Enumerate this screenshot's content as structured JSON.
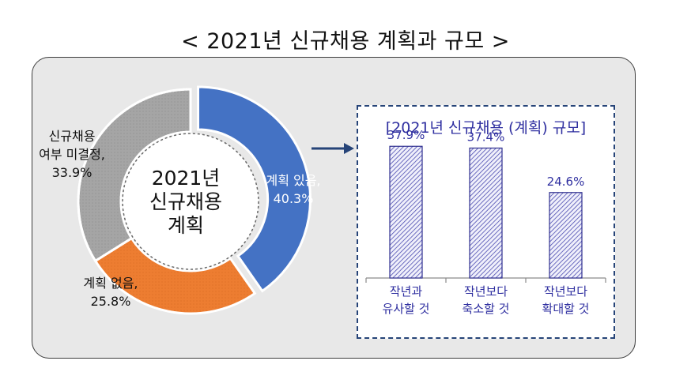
{
  "title": "< 2021년 신규채용 계획과 규모 >",
  "colors": {
    "planned": "#4472c4",
    "none": "#ed7d31",
    "undecided": "#a5a5a5",
    "bar_stroke": "#2f2f8f",
    "bar_hatch": "#4a4ab0",
    "label_blue": "#2f2fa0"
  },
  "chart_data": [
    {
      "type": "pie",
      "title": "",
      "center_label": [
        "2021년",
        "신규채용",
        "계획"
      ],
      "slices": [
        {
          "label": [
            "계획 있음,"
          ],
          "value": 40.3,
          "value_label": "40.3%"
        },
        {
          "label": [
            "계획 없음,"
          ],
          "value": 25.8,
          "value_label": "25.8%"
        },
        {
          "label": [
            "신규채용",
            "여부 미결정,"
          ],
          "value": 33.9,
          "value_label": "33.9%"
        }
      ]
    },
    {
      "type": "bar",
      "title": "[2021년 신규채용 (계획) 규모]",
      "categories": [
        [
          "작년과",
          "유사할 것"
        ],
        [
          "작년보다",
          "축소할 것"
        ],
        [
          "작년보다",
          "확대할 것"
        ]
      ],
      "values": [
        37.9,
        37.4,
        24.6
      ],
      "value_labels": [
        "37.9%",
        "37.4%",
        "24.6%"
      ],
      "ylim": [
        0,
        45
      ],
      "grid": false
    }
  ]
}
